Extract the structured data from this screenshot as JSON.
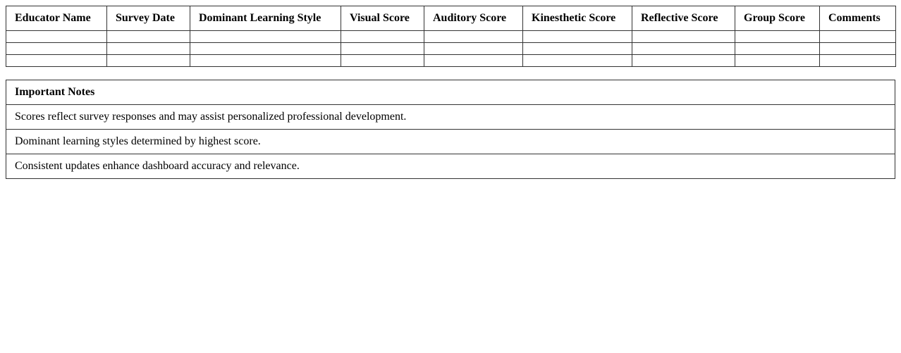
{
  "survey_table": {
    "columns": [
      "Educator Name",
      "Survey Date",
      "Dominant Learning Style",
      "Visual Score",
      "Auditory Score",
      "Kinesthetic Score",
      "Reflective Score",
      "Group Score",
      "Comments"
    ],
    "rows": [
      [
        "",
        "",
        "",
        "",
        "",
        "",
        "",
        "",
        ""
      ],
      [
        "",
        "",
        "",
        "",
        "",
        "",
        "",
        "",
        ""
      ],
      [
        "",
        "",
        "",
        "",
        "",
        "",
        "",
        "",
        ""
      ]
    ]
  },
  "notes": {
    "title": "Important Notes",
    "items": [
      "Scores reflect survey responses and may assist personalized professional development.",
      "Dominant learning styles determined by highest score.",
      "Consistent updates enhance dashboard accuracy and relevance."
    ]
  }
}
